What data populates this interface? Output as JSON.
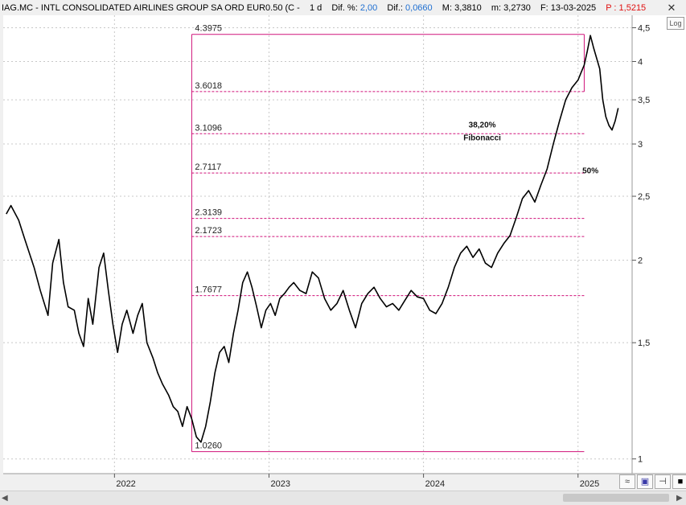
{
  "header": {
    "symbol": "IAG.MC - INTL CONSOLIDATED AIRLINES GROUP SA ORD EUR0.50 (C -",
    "interval": "1 d",
    "dif_pct_label": "Dif. %:",
    "dif_pct_value": "2,00",
    "dif_label": "Dif.:",
    "dif_value": "0,0660",
    "high_label": "M:",
    "high_value": "3,3810",
    "low_label": "m:",
    "low_value": "3,2730",
    "date_label": "F:",
    "date_value": "13-03-2025",
    "p_label": "P :",
    "p_value": "1,5215"
  },
  "controls": {
    "close_glyph": "✕",
    "log_label": "Log",
    "tool1_glyph": "≈",
    "tool2_glyph": "▣",
    "tool3_glyph": "⊣",
    "tool4_glyph": "■"
  },
  "chart_data": {
    "type": "line",
    "scale": "log",
    "grid": true,
    "ylim": [
      0.95,
      4.7
    ],
    "y_ticks": [
      {
        "value": 4.5,
        "label": "4,5"
      },
      {
        "value": 4,
        "label": "4"
      },
      {
        "value": 3.5,
        "label": "3,5"
      },
      {
        "value": 3,
        "label": "3"
      },
      {
        "value": 2.5,
        "label": "2,5"
      },
      {
        "value": 2,
        "label": "2"
      },
      {
        "value": 1.5,
        "label": "1,5"
      },
      {
        "value": 1,
        "label": "1"
      }
    ],
    "x_ticks": [
      {
        "value": 2022.0,
        "label": "2022"
      },
      {
        "value": 2023.0,
        "label": "2023"
      },
      {
        "value": 2024.0,
        "label": "2024"
      },
      {
        "value": 2025.0,
        "label": "2025"
      }
    ],
    "xlim": [
      2021.28,
      2025.35
    ],
    "series": [
      {
        "x": [
          2021.3,
          2021.33,
          2021.38,
          2021.42,
          2021.48,
          2021.52,
          2021.57,
          2021.6,
          2021.64,
          2021.67,
          2021.7,
          2021.74,
          2021.77,
          2021.8,
          2021.83,
          2021.86,
          2021.9,
          2021.93,
          2021.96,
          2021.99,
          2022.02,
          2022.05,
          2022.08,
          2022.12,
          2022.15,
          2022.18,
          2022.21,
          2022.25,
          2022.28,
          2022.31,
          2022.35,
          2022.38,
          2022.41,
          2022.44,
          2022.47,
          2022.5,
          2022.53,
          2022.56,
          2022.59,
          2022.62,
          2022.65,
          2022.68,
          2022.71,
          2022.74,
          2022.77,
          2022.8,
          2022.83,
          2022.86,
          2022.89,
          2022.92,
          2022.95,
          2022.98,
          2023.01,
          2023.04,
          2023.07,
          2023.1,
          2023.13,
          2023.16,
          2023.2,
          2023.24,
          2023.28,
          2023.32,
          2023.36,
          2023.4,
          2023.44,
          2023.48,
          2023.52,
          2023.56,
          2023.6,
          2023.64,
          2023.68,
          2023.72,
          2023.76,
          2023.8,
          2023.84,
          2023.88,
          2023.92,
          2023.96,
          2024.0,
          2024.04,
          2024.08,
          2024.12,
          2024.16,
          2024.2,
          2024.24,
          2024.28,
          2024.32,
          2024.36,
          2024.4,
          2024.44,
          2024.48,
          2024.52,
          2024.56,
          2024.6,
          2024.64,
          2024.68,
          2024.72,
          2024.76,
          2024.8,
          2024.84,
          2024.88,
          2024.92,
          2024.96,
          2025.0,
          2025.02,
          2025.04,
          2025.06,
          2025.08,
          2025.1,
          2025.12,
          2025.14,
          2025.16,
          2025.18,
          2025.2,
          2025.22,
          2025.24,
          2025.26
        ],
        "values": [
          2.35,
          2.42,
          2.3,
          2.15,
          1.95,
          1.8,
          1.65,
          1.98,
          2.15,
          1.85,
          1.7,
          1.68,
          1.55,
          1.48,
          1.75,
          1.6,
          1.95,
          2.05,
          1.8,
          1.6,
          1.45,
          1.6,
          1.68,
          1.55,
          1.65,
          1.72,
          1.5,
          1.42,
          1.35,
          1.3,
          1.25,
          1.2,
          1.18,
          1.12,
          1.2,
          1.15,
          1.08,
          1.06,
          1.12,
          1.22,
          1.35,
          1.45,
          1.48,
          1.4,
          1.55,
          1.68,
          1.85,
          1.92,
          1.82,
          1.7,
          1.58,
          1.68,
          1.72,
          1.65,
          1.75,
          1.78,
          1.82,
          1.85,
          1.8,
          1.78,
          1.92,
          1.88,
          1.75,
          1.68,
          1.72,
          1.8,
          1.68,
          1.58,
          1.72,
          1.78,
          1.82,
          1.75,
          1.7,
          1.72,
          1.68,
          1.74,
          1.8,
          1.76,
          1.75,
          1.68,
          1.66,
          1.72,
          1.82,
          1.95,
          2.05,
          2.1,
          2.02,
          2.08,
          1.98,
          1.95,
          2.05,
          2.12,
          2.18,
          2.32,
          2.48,
          2.55,
          2.45,
          2.6,
          2.75,
          3.0,
          3.25,
          3.5,
          3.65,
          3.75,
          3.85,
          3.95,
          4.15,
          4.38,
          4.2,
          4.05,
          3.9,
          3.5,
          3.3,
          3.2,
          3.15,
          3.25,
          3.4
        ]
      }
    ],
    "fibonacci": {
      "levels": [
        {
          "value": 4.3975,
          "label": "4.3975"
        },
        {
          "value": 3.6018,
          "label": "3.6018"
        },
        {
          "value": 3.1096,
          "label": "3.1096"
        },
        {
          "value": 2.7117,
          "label": "2.7117"
        },
        {
          "value": 2.3139,
          "label": "2.3139"
        },
        {
          "value": 2.1723,
          "label": "2.1723"
        },
        {
          "value": 1.7677,
          "label": "1.7677"
        },
        {
          "value": 1.026,
          "label": "1.0260"
        }
      ],
      "x_start": 2022.5,
      "x_end": 2025.04,
      "color": "#d0137a"
    },
    "annotations": [
      {
        "text": "38,20%",
        "x": 2024.38,
        "y": 3.18
      },
      {
        "text": "Fibonacci",
        "x": 2024.38,
        "y": 3.04
      },
      {
        "text": "50%",
        "x": 2025.08,
        "y": 2.71
      }
    ]
  }
}
